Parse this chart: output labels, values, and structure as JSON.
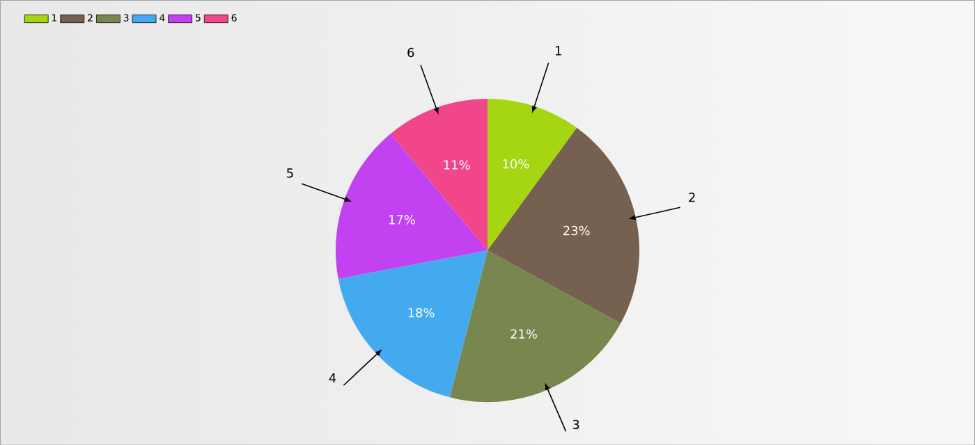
{
  "chart_data": {
    "type": "pie",
    "categories": [
      "1",
      "2",
      "3",
      "4",
      "5",
      "6"
    ],
    "values": [
      10,
      23,
      21,
      18,
      17,
      11
    ],
    "colors": [
      "#a6d612",
      "#76604f",
      "#788650",
      "#44aaf0",
      "#c242f2",
      "#f2468a"
    ],
    "value_labels": [
      "10%",
      "23%",
      "21%",
      "18%",
      "17%",
      "11%"
    ],
    "legend": "top left"
  }
}
